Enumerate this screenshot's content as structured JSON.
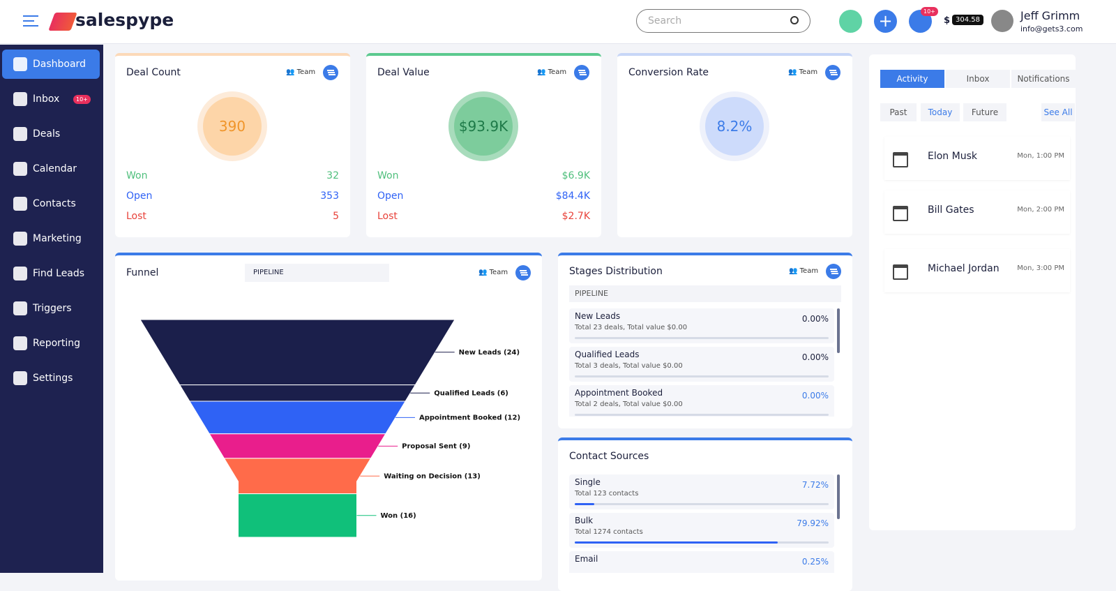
{
  "header": {
    "brand": "salespype",
    "search_placeholder": "Search",
    "notification_badge": "10+",
    "balance_currency": "$",
    "balance": "304.58",
    "user_name": "Jeff Grimm",
    "user_email": "info@gets3.com"
  },
  "sidebar": {
    "items": [
      "Dashboard",
      "Inbox",
      "Deals",
      "Calendar",
      "Contacts",
      "Marketing",
      "Find Leads",
      "Triggers",
      "Reporting",
      "Settings"
    ],
    "inbox_badge": "10+"
  },
  "kpis": [
    {
      "title": "Deal Count",
      "team": "Team",
      "value": "390",
      "rows": [
        {
          "label": "Won",
          "value": "32"
        },
        {
          "label": "Open",
          "value": "353"
        },
        {
          "label": "Lost",
          "value": "5"
        }
      ]
    },
    {
      "title": "Deal Value",
      "team": "Team",
      "value": "$93.9K",
      "rows": [
        {
          "label": "Won",
          "value": "$6.9K"
        },
        {
          "label": "Open",
          "value": "$84.4K"
        },
        {
          "label": "Lost",
          "value": "$2.7K"
        }
      ]
    },
    {
      "title": "Conversion Rate",
      "team": "Team",
      "value": "8.2%",
      "rows": []
    }
  ],
  "funnel": {
    "title": "Funnel",
    "selector": "PIPELINE",
    "team": "Team",
    "chart_data": {
      "type": "funnel",
      "values": [
        24,
        6,
        12,
        9,
        13,
        16
      ],
      "value_labels": [
        "New Leads (24)",
        "Qualified Leads (6)",
        "Appointment Booked (12)",
        "Proposal Sent (9)",
        "Waiting on Decision (13)",
        "Won (16)"
      ],
      "colors": [
        "#1b1f4b",
        "#1b1f4b",
        "#2f62f5",
        "#e91e8c",
        "#ff6b4a",
        "#10c07a"
      ]
    }
  },
  "stages": {
    "title": "Stages Distribution",
    "team": "Team",
    "selector": "PIPELINE",
    "items": [
      {
        "name": "New Leads",
        "detail": "Total 23 deals, Total value $0.00",
        "percent": "0.00%"
      },
      {
        "name": "Qualified Leads",
        "detail": "Total 3 deals, Total value $0.00",
        "percent": "0.00%"
      },
      {
        "name": "Appointment Booked",
        "detail": "Total 2 deals, Total value $0.00",
        "percent": "0.00%"
      }
    ]
  },
  "sources": {
    "title": "Contact Sources",
    "items": [
      {
        "name": "Single",
        "detail": "Total 123 contacts",
        "percent": "7.72%"
      },
      {
        "name": "Bulk",
        "detail": "Total 1274 contacts",
        "percent": "79.92%"
      },
      {
        "name": "Email",
        "detail": "",
        "percent": "0.25%"
      }
    ]
  },
  "activity": {
    "tabs": [
      "Activity",
      "Inbox",
      "Notifications"
    ],
    "filters": [
      "Past",
      "Today",
      "Future"
    ],
    "see_all": "See All",
    "events": [
      {
        "name": "Elon Musk",
        "time": "Mon, 1:00 PM"
      },
      {
        "name": "Bill Gates",
        "time": "Mon, 2:00 PM"
      },
      {
        "name": "Michael Jordan",
        "time": "Mon, 3:00 PM"
      }
    ]
  }
}
